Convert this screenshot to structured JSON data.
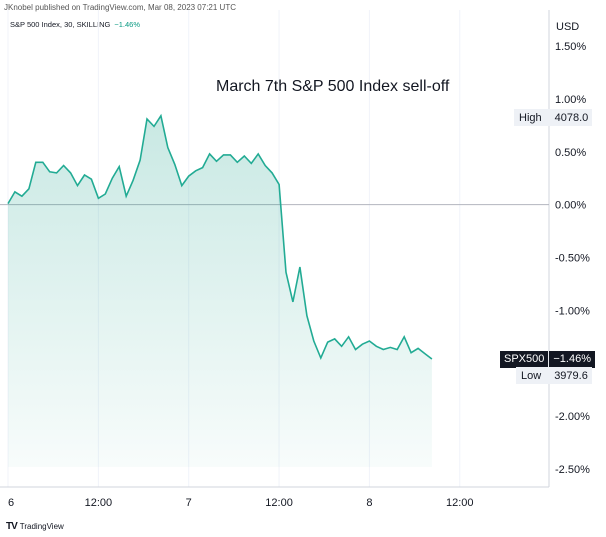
{
  "header": {
    "attribution": "JKnobel published on TradingView.com, Mar 08, 2023 07:21 UTC",
    "symbol": "S&P 500 Index, 30, SKILLING",
    "change": "−1.46%"
  },
  "currency": "USD",
  "chart_data": {
    "type": "area",
    "title": "March 7th S&P 500 Index sell-off",
    "y_unit": "percent change",
    "ylim": [
      -2.75,
      1.75
    ],
    "y_ticks": [
      "1.50%",
      "1.00%",
      "0.50%",
      "0.00%",
      "-0.50%",
      "-1.00%",
      "-2.00%",
      "-2.50%"
    ],
    "y_tick_values": [
      1.5,
      1.0,
      0.5,
      0.0,
      -0.5,
      -1.0,
      -2.0,
      -2.5
    ],
    "x_ticks": [
      "6",
      "12:00",
      "7",
      "12:00",
      "8",
      "12:00"
    ],
    "x_tick_bars": [
      0,
      13,
      26,
      39,
      52,
      65
    ],
    "x_range": [
      0,
      78
    ],
    "baseline": 0.0,
    "series": [
      {
        "name": "SPX500",
        "bar_index": [
          0,
          1,
          2,
          3,
          4,
          5,
          6,
          7,
          8,
          9,
          10,
          11,
          12,
          13,
          14,
          15,
          16,
          17,
          18,
          19,
          20,
          21,
          22,
          23,
          24,
          25,
          26,
          27,
          28,
          29,
          30,
          31,
          32,
          33,
          34,
          35,
          36,
          37,
          38,
          39,
          40,
          41,
          42,
          43,
          44,
          45,
          46,
          47,
          48,
          49,
          50,
          51,
          52,
          53,
          54,
          55,
          56,
          57,
          58,
          59,
          60,
          61
        ],
        "values": [
          0.01,
          0.12,
          0.08,
          0.15,
          0.4,
          0.4,
          0.31,
          0.3,
          0.37,
          0.3,
          0.18,
          0.28,
          0.24,
          0.06,
          0.1,
          0.25,
          0.36,
          0.08,
          0.23,
          0.42,
          0.81,
          0.74,
          0.84,
          0.54,
          0.38,
          0.18,
          0.27,
          0.32,
          0.35,
          0.48,
          0.41,
          0.47,
          0.47,
          0.4,
          0.46,
          0.39,
          0.48,
          0.37,
          0.3,
          0.19,
          -0.64,
          -0.92,
          -0.59,
          -1.05,
          -1.29,
          -1.45,
          -1.3,
          -1.27,
          -1.34,
          -1.25,
          -1.37,
          -1.32,
          -1.29,
          -1.34,
          -1.37,
          -1.35,
          -1.37,
          -1.25,
          -1.4,
          -1.36,
          -1.41,
          -1.46
        ]
      }
    ],
    "high_label": "High",
    "high_value": "4078.0",
    "low_label": "Low",
    "low_value": "3979.6",
    "last_label": "SPX500",
    "last_value": "−1.46%"
  },
  "footer": {
    "brand": "TradingView",
    "logo": "TV"
  }
}
